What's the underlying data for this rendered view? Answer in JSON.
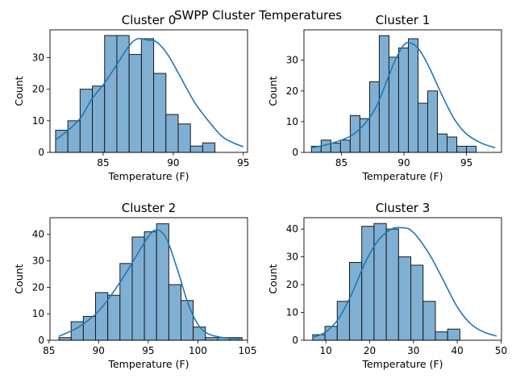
{
  "figure": {
    "title": "SWPP Cluster Temperatures"
  },
  "style": {
    "bar_fill": "#7fb0d3",
    "bar_edge": "#1a1a1a",
    "kde_color": "#1f77b4"
  },
  "chart_data": [
    {
      "type": "bar",
      "title": "Cluster 0",
      "xlabel": "Temperature (F)",
      "ylabel": "Count",
      "xlim": [
        81.2,
        95.3
      ],
      "ylim": [
        0,
        38.8
      ],
      "xticks": [
        85,
        90,
        95
      ],
      "yticks": [
        0,
        10,
        20,
        30
      ],
      "bin_start": 81.6,
      "bin_width": 0.875,
      "counts": [
        7,
        10,
        20,
        21,
        37,
        37,
        31,
        36,
        25,
        12,
        9,
        2,
        3
      ],
      "kde": {
        "x": [
          81.6,
          82.5,
          83.4,
          84.2,
          85.1,
          86.0,
          86.9,
          87.5,
          88.2,
          88.8,
          89.6,
          90.5,
          91.5,
          92.5,
          93.5,
          94.3,
          95.0
        ],
        "y": [
          4,
          7,
          11,
          17,
          22,
          28,
          34,
          36,
          35.5,
          35,
          31,
          24,
          16,
          10,
          5,
          3,
          1.8
        ]
      }
    },
    {
      "type": "bar",
      "title": "Cluster 1",
      "xlabel": "Temperature (F)",
      "ylabel": "Count",
      "xlim": [
        82.0,
        97.8
      ],
      "ylim": [
        0,
        39.9
      ],
      "xticks": [
        85,
        90,
        95
      ],
      "yticks": [
        0,
        10,
        20,
        30
      ],
      "bin_start": 82.6,
      "bin_width": 0.775,
      "counts": [
        2,
        4,
        3,
        4,
        12,
        11,
        23,
        38,
        31,
        34,
        37,
        16,
        20,
        6,
        5,
        2,
        2
      ],
      "kde": {
        "x": [
          82.6,
          83.8,
          85.0,
          86.0,
          87.0,
          87.8,
          88.6,
          89.3,
          90.0,
          90.6,
          91.3,
          92.1,
          93.0,
          94.0,
          95.0,
          96.2,
          97.3
        ],
        "y": [
          1.5,
          2.5,
          4,
          6,
          10,
          15,
          23,
          30,
          35,
          35.5,
          33,
          27,
          19,
          11,
          6,
          3,
          1.5
        ]
      }
    },
    {
      "type": "bar",
      "title": "Cluster 2",
      "xlabel": "Temperature (F)",
      "ylabel": "Count",
      "xlim": [
        85.1,
        105.0
      ],
      "ylim": [
        0,
        46.3
      ],
      "xticks": [
        85,
        90,
        95,
        100,
        105
      ],
      "yticks": [
        0,
        10,
        20,
        30,
        40
      ],
      "bin_start": 86.0,
      "bin_width": 1.23,
      "counts": [
        1,
        7,
        9,
        18,
        17,
        29,
        39,
        41,
        44,
        21,
        15,
        5,
        1,
        1,
        1
      ],
      "kde": {
        "x": [
          86.0,
          88.0,
          90.0,
          92.0,
          93.5,
          94.8,
          95.6,
          96.3,
          97.0,
          98.0,
          99.0,
          100.0,
          101.0,
          102.5,
          104.3
        ],
        "y": [
          1.5,
          5,
          11,
          21,
          30,
          38,
          41.5,
          41,
          37,
          26,
          14,
          6,
          2.5,
          1,
          0.5
        ]
      }
    },
    {
      "type": "bar",
      "title": "Cluster 3",
      "xlabel": "Temperature (F)",
      "ylabel": "Count",
      "xlim": [
        5.0,
        50.1
      ],
      "ylim": [
        0,
        44.1
      ],
      "xticks": [
        10,
        20,
        30,
        40,
        50
      ],
      "yticks": [
        0,
        10,
        20,
        30,
        40
      ],
      "bin_start": 7.0,
      "bin_width": 2.8,
      "counts": [
        2,
        5,
        14,
        28,
        41,
        42,
        40,
        30,
        27,
        14,
        3,
        4
      ],
      "kde": {
        "x": [
          7.0,
          10.0,
          13.0,
          16.0,
          19.0,
          22.0,
          25.0,
          27.0,
          29.0,
          31.0,
          34.0,
          37.0,
          40.0,
          43.0,
          46.0,
          49.0
        ],
        "y": [
          1,
          3,
          8,
          17,
          28,
          36,
          40,
          40.5,
          40,
          37,
          30,
          21,
          12,
          6,
          3,
          1.5
        ]
      }
    }
  ]
}
